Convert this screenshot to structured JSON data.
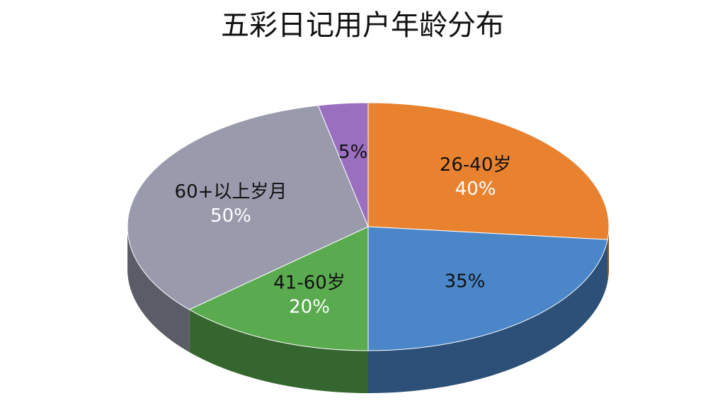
{
  "chart_data": {
    "type": "pie",
    "title": "五彩日记用户年龄分布",
    "categories": [
      "26-40岁",
      null,
      "41-60岁",
      "60+以上岁月",
      null
    ],
    "values": [
      40,
      35,
      20,
      50,
      5
    ],
    "value_labels": [
      "40%",
      "35%",
      "20%",
      "50%",
      "5%"
    ],
    "colors": [
      "#e8822f",
      "#4a86c8",
      "#5aaa4f",
      "#9a9aad",
      "#9b6fc0"
    ]
  }
}
